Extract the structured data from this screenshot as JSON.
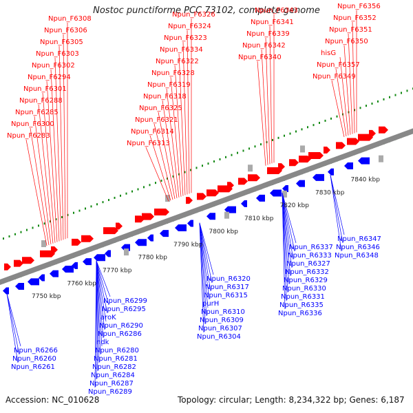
{
  "title": "Nostoc punctiforme PCC 73102, complete genome",
  "footer": {
    "accession": "Accession: NC_010628",
    "topology": "Topology: circular; Length: 8,234,322 bp; Genes: 6,187"
  },
  "colors": {
    "forward": "#ff0000",
    "reverse": "#0000ff",
    "backbone": "#888888",
    "ticks": "#118811"
  },
  "kbp_labels": [
    "7750 kbp",
    "7760 kbp",
    "7770 kbp",
    "7780 kbp",
    "7790 kbp",
    "7800 kbp",
    "7810 kbp",
    "7820 kbp",
    "7830 kbp",
    "7840 kbp"
  ],
  "forward_labels": [
    "Npun_F6356",
    "Npun_F6352",
    "Npun_F6351",
    "Npun_F6350",
    "hisG",
    "Npun_F6357",
    "Npun_F6349",
    "Npun_F6343",
    "Npun_F6341",
    "Npun_F6339",
    "Npun_F6342",
    "Npun_F6340",
    "Npun_F6326",
    "Npun_F6324",
    "Npun_F6323",
    "Npun_F6334",
    "Npun_F6322",
    "Npun_F6328",
    "Npun_F6319",
    "Npun_F6318",
    "Npun_F6325",
    "Npun_F6321",
    "Npun_F6314",
    "Npun_F6313",
    "Npun_F6308",
    "Npun_F6306",
    "Npun_F6305",
    "Npun_F6303",
    "Npun_F6302",
    "Npun_F6294",
    "Npun_F6301",
    "Npun_F6288",
    "Npun_F6285",
    "Npun_F6300",
    "Npun_F6283"
  ],
  "reverse_labels": [
    "Npun_R6347",
    "Npun_R6346",
    "Npun_R6348",
    "Npun_R6337",
    "Npun_R6333",
    "Npun_R6327",
    "Npun_R6332",
    "Npun_R6329",
    "Npun_R6330",
    "Npun_R6331",
    "Npun_R6335",
    "Npun_R6336",
    "Npun_R6320",
    "Npun_R6317",
    "Npun_R6315",
    "purH",
    "Npun_R6310",
    "Npun_R6309",
    "Npun_R6307",
    "Npun_R6304",
    "Npun_R6299",
    "Npun_R6295",
    "aroK",
    "Npun_R6290",
    "Npun_R6286",
    "ndk",
    "Npun_R6280",
    "Npun_R6281",
    "Npun_R6282",
    "Npun_R6284",
    "Npun_R6287",
    "Npun_R6289",
    "Npun_R6266",
    "Npun_R6260",
    "Npun_R6261"
  ]
}
